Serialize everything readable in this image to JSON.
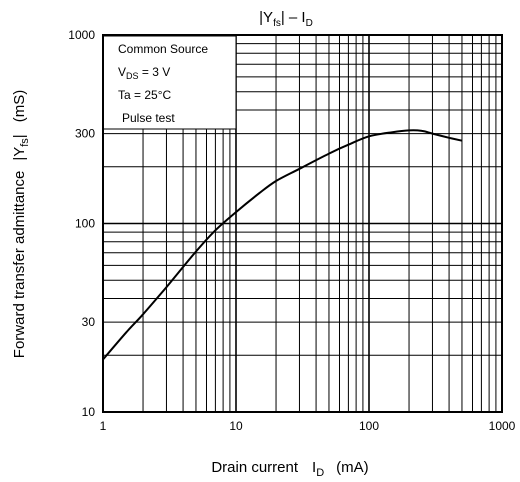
{
  "chart_data": {
    "type": "line",
    "title": "|Yfs| – ID",
    "title_parts": {
      "open": "|Y",
      "sub1": "fs",
      "mid": "| – I",
      "sub2": "D"
    },
    "xlabel": "Drain current",
    "xlabel_symbol": {
      "main": "I",
      "sub": "D"
    },
    "xlabel_unit": "(mA)",
    "ylabel": "Forward transfer admittance",
    "ylabel_symbol": {
      "open": "|Y",
      "sub": "fs",
      "close": "|"
    },
    "ylabel_unit": "(mS)",
    "x_scale": "log",
    "y_scale": "log",
    "xlim": [
      1,
      1000
    ],
    "ylim": [
      10,
      1000
    ],
    "x_ticks": [
      1,
      10,
      100,
      1000
    ],
    "x_tick_labels": [
      "1",
      "10",
      "100",
      "1000"
    ],
    "y_ticks": [
      10,
      30,
      100,
      300,
      1000
    ],
    "y_tick_labels": [
      "10",
      "30",
      "100",
      "300",
      "1000"
    ],
    "grid": true,
    "annotation": {
      "line1": "Common Source",
      "line2": {
        "main": "V",
        "sub": "DS",
        "rest": " = 3 V"
      },
      "line3": "Ta = 25°C",
      "line4": "Pulse test"
    },
    "series": [
      {
        "x": [
          1,
          1.5,
          2,
          3,
          5,
          7,
          10,
          15,
          20,
          30,
          50,
          70,
          100,
          150,
          200,
          250,
          300,
          400,
          500
        ],
        "y": [
          19,
          26.5,
          33,
          46,
          71,
          92,
          115,
          145,
          168,
          195,
          235,
          262,
          290,
          305,
          312,
          310,
          300,
          285,
          275
        ]
      }
    ]
  }
}
